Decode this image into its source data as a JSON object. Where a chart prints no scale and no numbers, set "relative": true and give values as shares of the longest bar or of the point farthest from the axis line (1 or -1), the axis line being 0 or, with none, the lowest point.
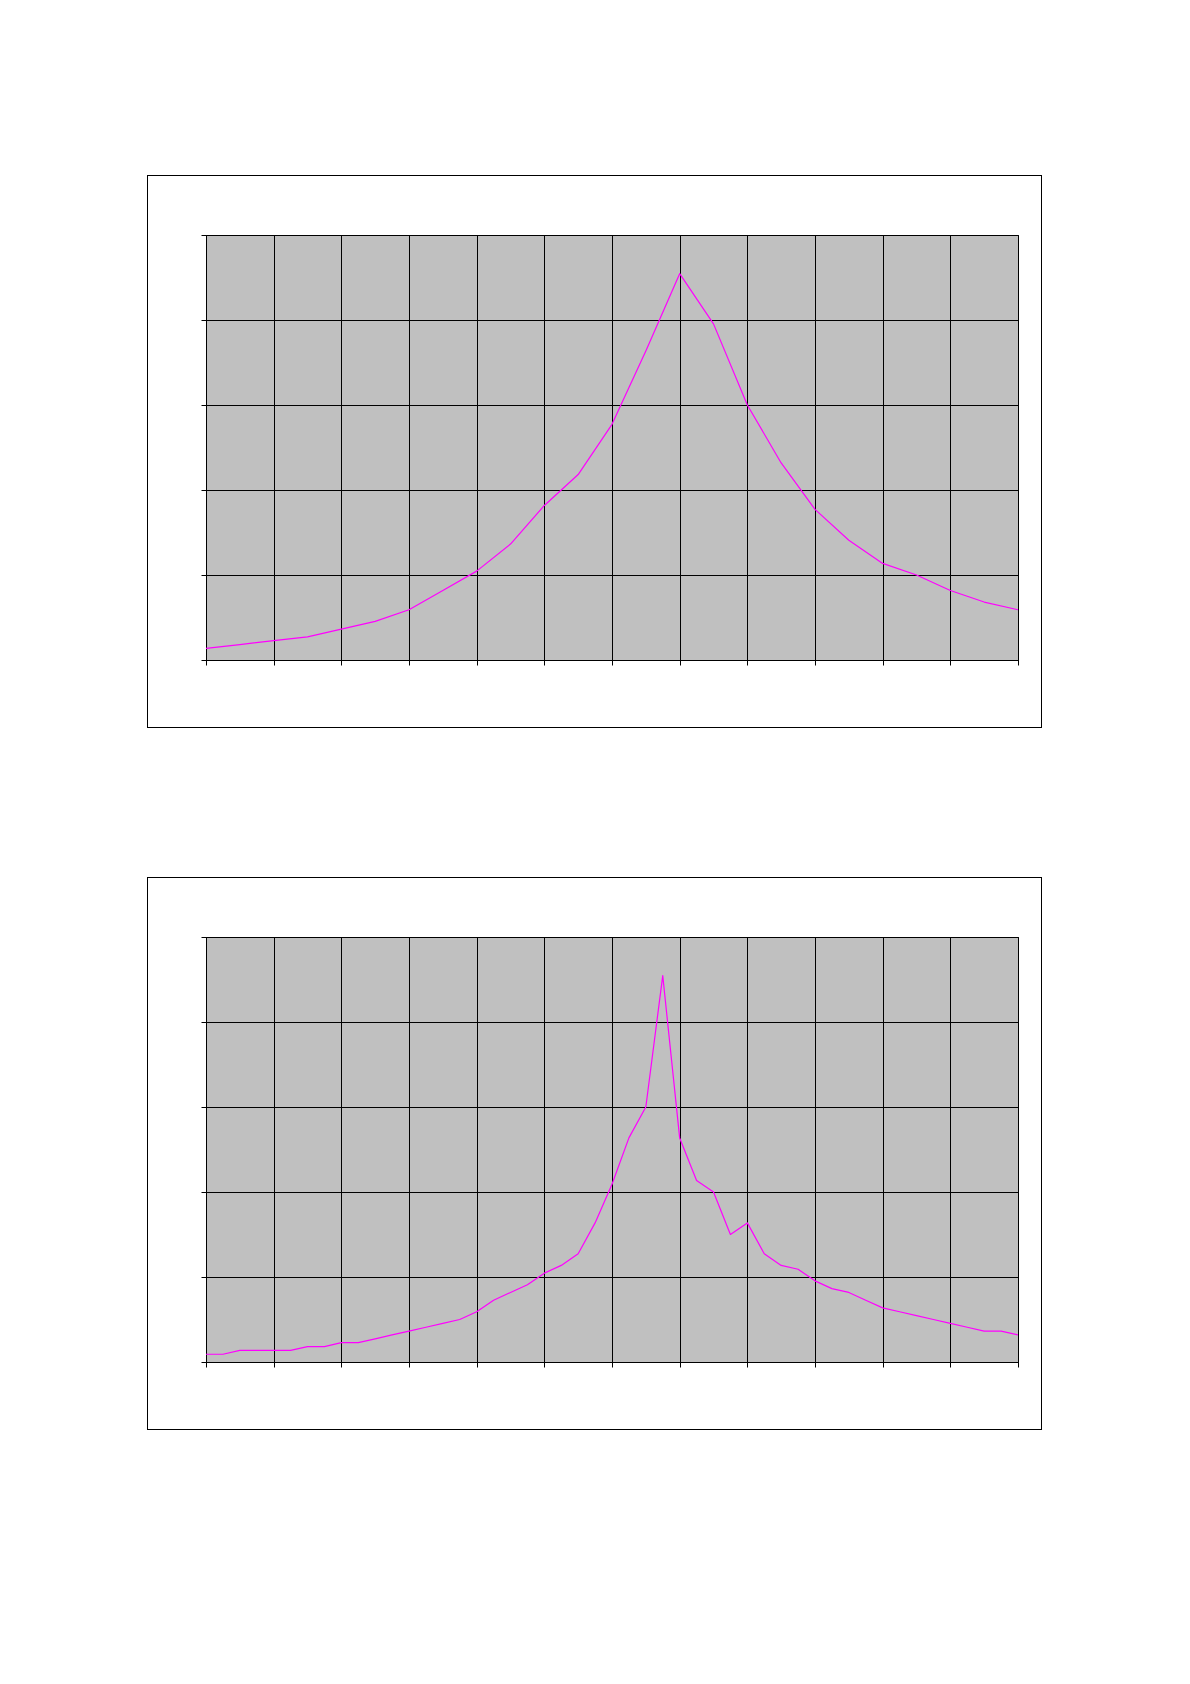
{
  "chart_data": [
    {
      "type": "line",
      "relative": true,
      "grid": true,
      "color": "#ff00ff",
      "categories": [
        null,
        null,
        null,
        null,
        null,
        null,
        null,
        null,
        null,
        null,
        null,
        null,
        null,
        null,
        null,
        null,
        null,
        null,
        null,
        null,
        null,
        null,
        null,
        null,
        null
      ],
      "values": [
        0.03,
        0.04,
        0.05,
        0.06,
        0.08,
        0.1,
        0.13,
        0.18,
        0.23,
        0.3,
        0.4,
        0.48,
        0.61,
        0.8,
        1,
        0.87,
        0.66,
        0.51,
        0.39,
        0.31,
        0.25,
        0.22,
        0.18,
        0.15,
        0.13
      ]
    },
    {
      "type": "line",
      "relative": true,
      "grid": true,
      "color": "#ff00ff",
      "categories": [
        null,
        null,
        null,
        null,
        null,
        null,
        null,
        null,
        null,
        null,
        null,
        null,
        null,
        null,
        null,
        null,
        null,
        null,
        null,
        null,
        null,
        null,
        null,
        null,
        null,
        null,
        null,
        null,
        null,
        null,
        null,
        null,
        null,
        null,
        null,
        null,
        null,
        null,
        null,
        null,
        null,
        null,
        null,
        null,
        null,
        null,
        null,
        null,
        null
      ],
      "values": [
        0.02,
        0.02,
        0.03,
        0.03,
        0.03,
        0.03,
        0.04,
        0.04,
        0.05,
        0.05,
        0.06,
        0.07,
        0.08,
        0.09,
        0.1,
        0.11,
        0.13,
        0.16,
        0.18,
        0.2,
        0.23,
        0.25,
        0.28,
        0.36,
        0.46,
        0.58,
        0.66,
        1,
        0.58,
        0.47,
        0.44,
        0.33,
        0.36,
        0.28,
        0.25,
        0.24,
        0.21,
        0.19,
        0.18,
        0.16,
        0.14,
        0.13,
        0.12,
        0.11,
        0.1,
        0.09,
        0.08,
        0.08,
        0.07
      ]
    }
  ]
}
